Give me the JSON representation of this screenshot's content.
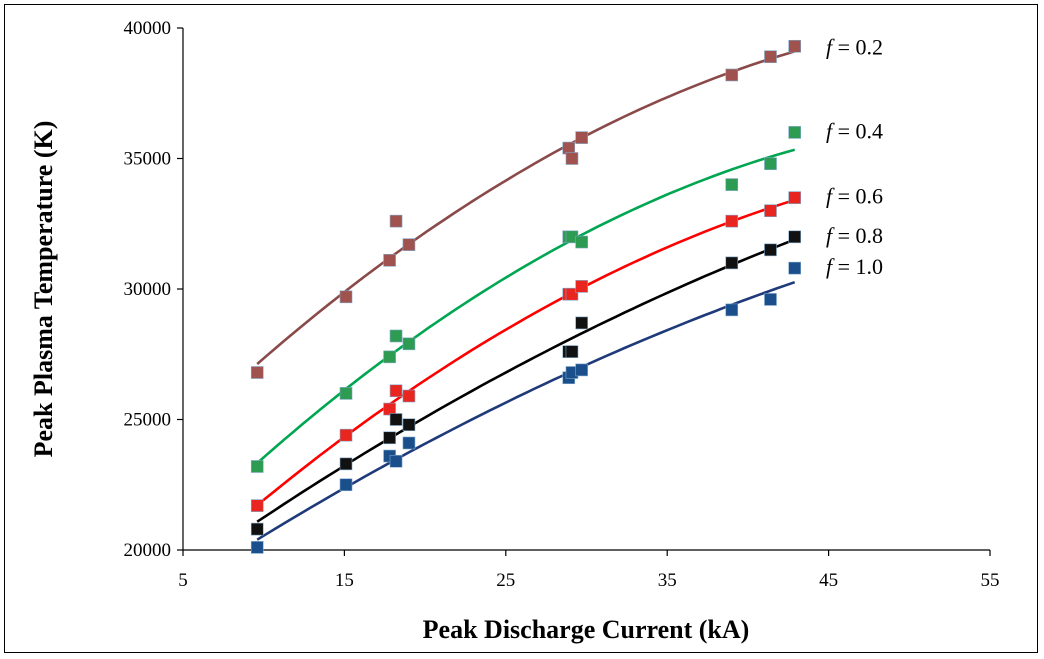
{
  "chart_data": {
    "type": "scatter",
    "xlabel": "Peak Discharge Current (kA)",
    "ylabel": "Peak Plasma Temperature  (K)",
    "xlim": [
      5,
      55
    ],
    "ylim": [
      20000,
      40000
    ],
    "xticks": [
      "5",
      "15",
      "25",
      "35",
      "45",
      "55"
    ],
    "yticks": [
      "20000",
      "25000",
      "30000",
      "35000",
      "40000"
    ],
    "grid": false,
    "legend": "inline labels at right end of each curve",
    "x": [
      9.6,
      15.1,
      17.8,
      18.2,
      19.0,
      28.9,
      29.1,
      29.7,
      39.0,
      41.4,
      42.9
    ],
    "series": [
      {
        "name": "f = 0.2",
        "color": "#8b4a4a",
        "marker_color": "#a0524f",
        "values": [
          26800,
          29700,
          31100,
          32600,
          31700,
          35400,
          35000,
          35800,
          38200,
          38900,
          39300
        ]
      },
      {
        "name": "f = 0.4",
        "color": "#00a651",
        "marker_color": "#2e9b53",
        "values": [
          23200,
          26000,
          27400,
          28200,
          27900,
          32000,
          32000,
          31800,
          34000,
          34800,
          36000
        ]
      },
      {
        "name": "f = 0.6",
        "color": "#ff0000",
        "marker_color": "#e8251f",
        "values": [
          21700,
          24400,
          25400,
          26100,
          25900,
          29800,
          29800,
          30100,
          32600,
          33000,
          33500
        ]
      },
      {
        "name": "f = 0.8",
        "color": "#000000",
        "marker_color": "#111111",
        "values": [
          20800,
          23300,
          24300,
          25000,
          24800,
          27600,
          27600,
          28700,
          31000,
          31500,
          32000
        ]
      },
      {
        "name": "f = 1.0",
        "color": "#1f3a7a",
        "marker_color": "#1a4f8c",
        "values": [
          20100,
          22500,
          23600,
          23400,
          24100,
          26600,
          26800,
          26900,
          29200,
          29600,
          30800
        ]
      }
    ]
  }
}
